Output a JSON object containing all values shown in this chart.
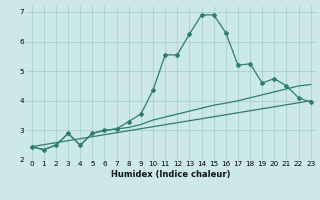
{
  "xlabel": "Humidex (Indice chaleur)",
  "xlim": [
    -0.5,
    23.5
  ],
  "ylim": [
    2,
    7.2
  ],
  "yticks": [
    2,
    3,
    4,
    5,
    6,
    7
  ],
  "xticks": [
    0,
    1,
    2,
    3,
    4,
    5,
    6,
    7,
    8,
    9,
    10,
    11,
    12,
    13,
    14,
    15,
    16,
    17,
    18,
    19,
    20,
    21,
    22,
    23
  ],
  "bg_color": "#cce8e8",
  "line_color": "#2e7d72",
  "grid_color": "#aacfcf",
  "line1_x": [
    0,
    1,
    2,
    3,
    4,
    5,
    6,
    7,
    8,
    9,
    10,
    11,
    12,
    13,
    14,
    15,
    16,
    17,
    18,
    19,
    20,
    21,
    22,
    23
  ],
  "line1_y": [
    2.45,
    2.35,
    2.5,
    2.9,
    2.5,
    2.9,
    3.0,
    3.05,
    3.3,
    3.55,
    4.35,
    5.55,
    5.55,
    6.25,
    6.9,
    6.9,
    6.3,
    5.2,
    5.25,
    4.6,
    4.75,
    4.5,
    4.1,
    3.95
  ],
  "line2_x": [
    0,
    1,
    2,
    3,
    4,
    5,
    6,
    7,
    8,
    9,
    10,
    11,
    12,
    13,
    14,
    15,
    16,
    17,
    18,
    19,
    20,
    21,
    22,
    23
  ],
  "line2_y": [
    2.45,
    2.35,
    2.5,
    2.9,
    2.5,
    2.9,
    3.0,
    3.05,
    3.1,
    3.2,
    3.35,
    3.45,
    3.55,
    3.65,
    3.75,
    3.85,
    3.92,
    4.0,
    4.1,
    4.2,
    4.3,
    4.4,
    4.5,
    4.55
  ],
  "line3_x": [
    0,
    23
  ],
  "line3_y": [
    2.45,
    4.0
  ],
  "xlabel_fontsize": 6.0,
  "tick_fontsize": 5.2
}
